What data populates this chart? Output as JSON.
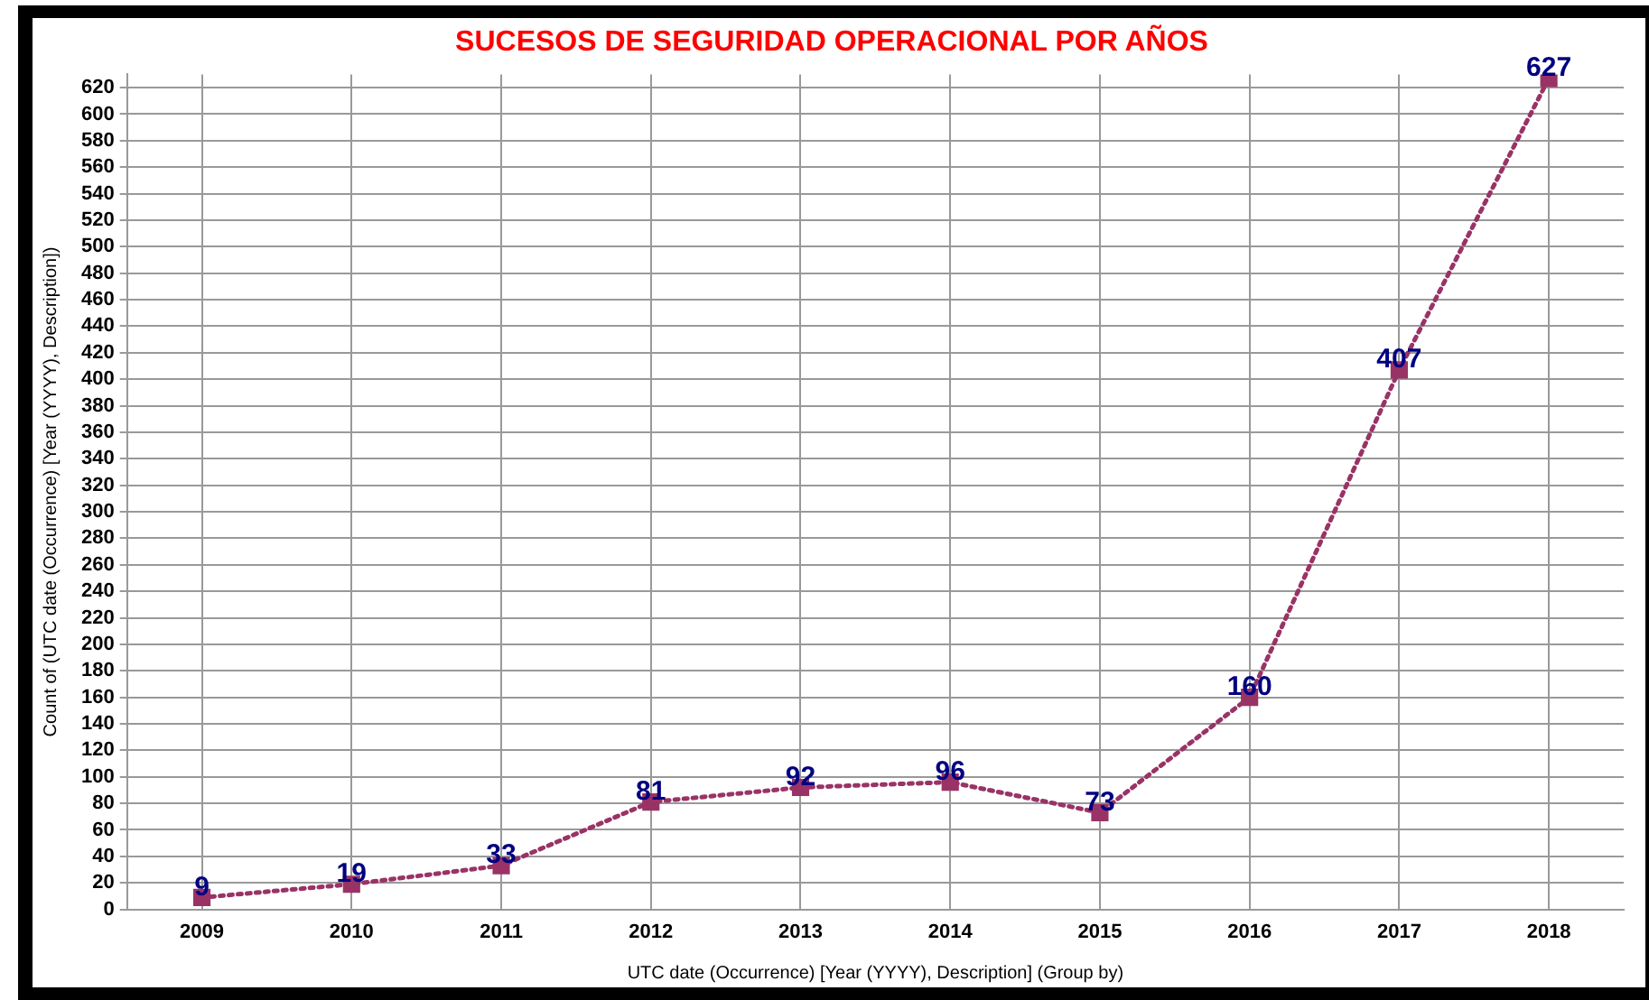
{
  "chart_data": {
    "type": "line",
    "title": "SUCESOS DE SEGURIDAD OPERACIONAL POR AÑOS",
    "xlabel": "UTC date (Occurrence) [Year (YYYY), Description] (Group by)",
    "ylabel": "Count of (UTC date (Occurrence) [Year (YYYY), Description])",
    "categories": [
      "2009",
      "2010",
      "2011",
      "2012",
      "2013",
      "2014",
      "2015",
      "2016",
      "2017",
      "2018"
    ],
    "series": [
      {
        "color": "#993366",
        "values": [
          9,
          19,
          33,
          81,
          92,
          96,
          73,
          160,
          407,
          627
        ]
      }
    ],
    "ylim": [
      0,
      630
    ],
    "yticks": [
      0,
      20,
      40,
      60,
      80,
      100,
      120,
      140,
      160,
      180,
      200,
      220,
      240,
      260,
      280,
      300,
      320,
      340,
      360,
      380,
      400,
      420,
      440,
      460,
      480,
      500,
      520,
      540,
      560,
      580,
      600,
      620
    ],
    "grid": true,
    "legend": false,
    "marker": "square",
    "line_style": "dotted",
    "data_labels": true
  }
}
